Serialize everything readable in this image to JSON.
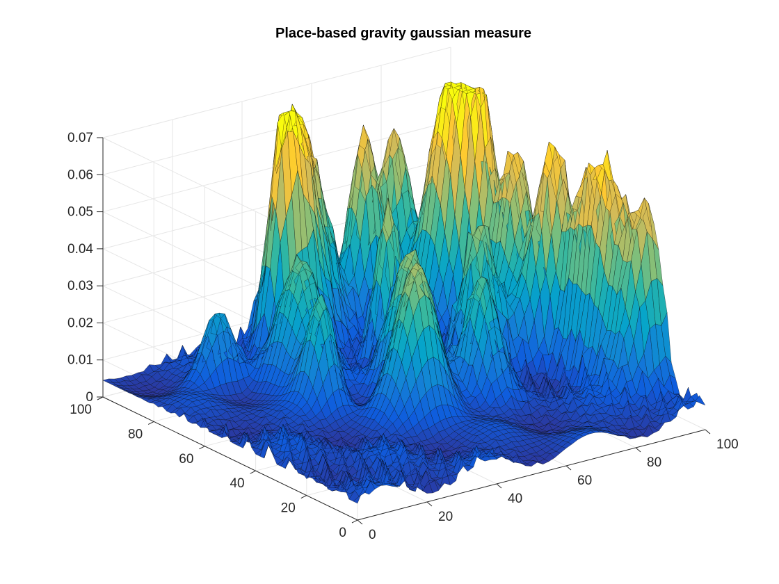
{
  "chart_data": {
    "type": "surface",
    "title": "Place-based gravity gaussian measure",
    "xlabel": "",
    "ylabel": "",
    "zlabel": "",
    "xlim": [
      0,
      100
    ],
    "ylim": [
      0,
      100
    ],
    "zlim": [
      0,
      0.07
    ],
    "x_ticks": [
      0,
      20,
      40,
      60,
      80,
      100
    ],
    "x_tick_labels": [
      "0",
      "20",
      "40",
      "60",
      "80",
      "100"
    ],
    "y_ticks": [
      0,
      20,
      40,
      60,
      80,
      100
    ],
    "y_tick_labels": [
      "0",
      "20",
      "40",
      "60",
      "80",
      "100"
    ],
    "z_ticks": [
      0,
      0.01,
      0.02,
      0.03,
      0.04,
      0.05,
      0.06,
      0.07
    ],
    "z_tick_labels": [
      "0",
      "0.01",
      "0.02",
      "0.03",
      "0.04",
      "0.05",
      "0.06",
      "0.07"
    ],
    "grid": true,
    "colormap": [
      "#352a87",
      "#0f5cdd",
      "#1481d6",
      "#06a4ca",
      "#2eb7a4",
      "#87bf77",
      "#d1bb59",
      "#fec832",
      "#f9fb0e"
    ],
    "edge_color": "#000000",
    "peaks": [
      {
        "x": 42,
        "y": 88,
        "z": 0.046
      },
      {
        "x": 48,
        "y": 90,
        "z": 0.048
      },
      {
        "x": 56,
        "y": 94,
        "z": 0.038
      },
      {
        "x": 70,
        "y": 93,
        "z": 0.052
      },
      {
        "x": 80,
        "y": 95,
        "z": 0.046
      },
      {
        "x": 85,
        "y": 80,
        "z": 0.065
      },
      {
        "x": 88,
        "y": 72,
        "z": 0.055
      },
      {
        "x": 90,
        "y": 60,
        "z": 0.05
      },
      {
        "x": 92,
        "y": 50,
        "z": 0.047
      },
      {
        "x": 94,
        "y": 40,
        "z": 0.044
      },
      {
        "x": 96,
        "y": 30,
        "z": 0.042
      },
      {
        "x": 98,
        "y": 20,
        "z": 0.045
      },
      {
        "x": 60,
        "y": 70,
        "z": 0.042
      },
      {
        "x": 52,
        "y": 50,
        "z": 0.036
      },
      {
        "x": 45,
        "y": 38,
        "z": 0.04
      },
      {
        "x": 30,
        "y": 55,
        "z": 0.03
      },
      {
        "x": 20,
        "y": 82,
        "z": 0.02
      },
      {
        "x": 35,
        "y": 70,
        "z": 0.032
      },
      {
        "x": 65,
        "y": 40,
        "z": 0.03
      },
      {
        "x": 75,
        "y": 55,
        "z": 0.038
      }
    ]
  }
}
